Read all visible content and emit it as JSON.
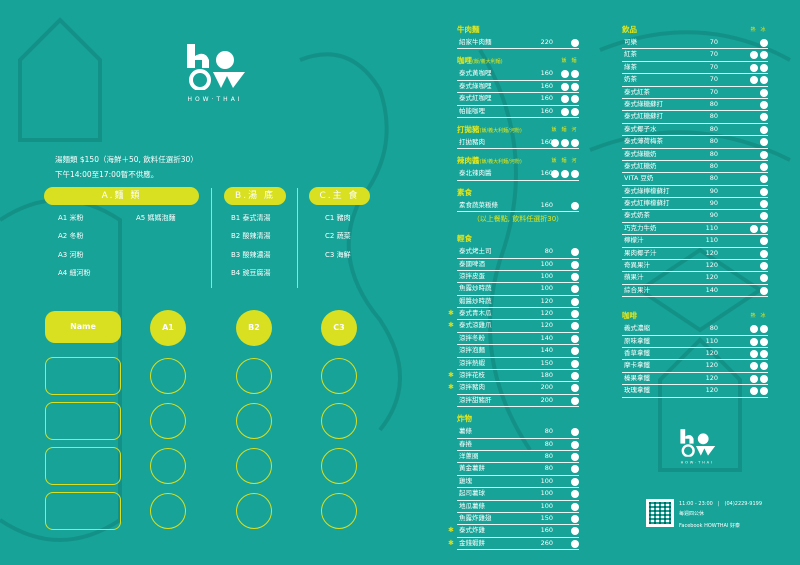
{
  "brand": {
    "logo_text": "ho",
    "logo_sub": "HOW·THAI"
  },
  "colors": {
    "background": "#17a398",
    "accent": "#d8e021"
  },
  "info": {
    "line1": "湯麵類 $150（海鮮＋50, 飲料任選折30）",
    "line2": "下午14:00至17:00暫不供應。"
  },
  "categories": [
    {
      "title": "A.麵 類",
      "options": [
        "A1 米粉",
        "A2 冬粉",
        "A3 河粉",
        "A4 細河粉",
        "A5 媽媽泡麵"
      ]
    },
    {
      "title": "B.湯 底",
      "options": [
        "B1 泰式清湯",
        "B2 酸辣清湯",
        "B3 酸辣濃湯",
        "B4 豌豆腐湯"
      ]
    },
    {
      "title": "C.主 食",
      "options": [
        "C1 豬肉",
        "C2 蔬菜",
        "C3 海鮮"
      ]
    }
  ],
  "order_form": {
    "name_label": "Name",
    "headers": [
      "A1",
      "B2",
      "C3"
    ]
  },
  "menu_left": [
    {
      "title": "牛肉麵",
      "sub": "",
      "labels": [],
      "items": [
        {
          "name": "紹家牛肉麵",
          "price": "220",
          "dots": 1
        }
      ]
    },
    {
      "title": "咖哩",
      "sub": "(飯/義大利麵)",
      "labels": [
        "飯",
        "麵"
      ],
      "items": [
        {
          "name": "泰式黃咖哩",
          "price": "160",
          "dots": 2
        },
        {
          "name": "泰式綠咖哩",
          "price": "160",
          "dots": 2
        },
        {
          "name": "泰式紅咖哩",
          "price": "160",
          "dots": 2
        },
        {
          "name": "帕能咖哩",
          "price": "160",
          "dots": 2
        }
      ]
    },
    {
      "title": "打拋豬",
      "sub": "(飯/義大利麵/河粉)",
      "labels": [
        "飯",
        "麵",
        "河"
      ],
      "items": [
        {
          "name": "打拋豬肉",
          "price": "160",
          "dots": 3
        }
      ]
    },
    {
      "title": "辣肉醬",
      "sub": "(飯/義大利麵/河粉)",
      "labels": [
        "飯",
        "麵",
        "河"
      ],
      "items": [
        {
          "name": "泰北辣肉醬",
          "price": "160",
          "dots": 3
        }
      ]
    },
    {
      "title": "素食",
      "sub": "",
      "labels": [],
      "items": [
        {
          "name": "素食蔬菜粄條",
          "price": "160",
          "dots": 1
        }
      ],
      "note": "（以上餐點, 飲料任選折30）"
    },
    {
      "title": "輕食",
      "sub": "",
      "labels": [],
      "items": [
        {
          "name": "泰式烤土司",
          "price": "80",
          "dots": 1
        },
        {
          "name": "泰國啤酒",
          "price": "100",
          "dots": 1
        },
        {
          "name": "涼拌皮蛋",
          "price": "100",
          "dots": 1
        },
        {
          "name": "魚露炒時蔬",
          "price": "100",
          "dots": 1
        },
        {
          "name": "蝦醬炒時蔬",
          "price": "120",
          "dots": 1
        },
        {
          "name": "泰式青木瓜",
          "price": "120",
          "dots": 1,
          "star": true
        },
        {
          "name": "泰式涼雞爪",
          "price": "120",
          "dots": 1,
          "star": true
        },
        {
          "name": "涼拌冬粉",
          "price": "140",
          "dots": 1
        },
        {
          "name": "涼拌泡麵",
          "price": "140",
          "dots": 1
        },
        {
          "name": "涼拌熱蝦",
          "price": "150",
          "dots": 1
        },
        {
          "name": "涼拌花枝",
          "price": "180",
          "dots": 1,
          "star": true
        },
        {
          "name": "涼拌豬肉",
          "price": "200",
          "dots": 1,
          "star": true
        },
        {
          "name": "涼拌甜豬肝",
          "price": "200",
          "dots": 1
        }
      ]
    },
    {
      "title": "炸物",
      "sub": "",
      "labels": [],
      "items": [
        {
          "name": "薯條",
          "price": "80",
          "dots": 1
        },
        {
          "name": "春捲",
          "price": "80",
          "dots": 1
        },
        {
          "name": "洋蔥圈",
          "price": "80",
          "dots": 1
        },
        {
          "name": "黃金薯餅",
          "price": "80",
          "dots": 1
        },
        {
          "name": "雞塊",
          "price": "100",
          "dots": 1
        },
        {
          "name": "起司薯球",
          "price": "100",
          "dots": 1
        },
        {
          "name": "地瓜薯條",
          "price": "100",
          "dots": 1
        },
        {
          "name": "魚露炸雞翅",
          "price": "150",
          "dots": 1
        },
        {
          "name": "泰式炸雞",
          "price": "160",
          "dots": 1,
          "star": true
        },
        {
          "name": "金錢蝦餅",
          "price": "260",
          "dots": 1,
          "star": true
        }
      ]
    }
  ],
  "menu_right": [
    {
      "title": "飲品",
      "sub": "",
      "labels": [
        "熱",
        "冰"
      ],
      "items": [
        {
          "name": "可樂",
          "price": "70",
          "dots": 1
        },
        {
          "name": "紅茶",
          "price": "70",
          "dots": 2
        },
        {
          "name": "綠茶",
          "price": "70",
          "dots": 2
        },
        {
          "name": "奶茶",
          "price": "70",
          "dots": 2
        },
        {
          "name": "泰式紅茶",
          "price": "70",
          "dots": 1
        },
        {
          "name": "泰式綠糖蘇打",
          "price": "80",
          "dots": 1
        },
        {
          "name": "泰式紅糖蘇打",
          "price": "80",
          "dots": 1
        },
        {
          "name": "泰式椰子水",
          "price": "80",
          "dots": 1
        },
        {
          "name": "泰式薄荷梅茶",
          "price": "80",
          "dots": 1
        },
        {
          "name": "泰式綠糖奶",
          "price": "80",
          "dots": 1
        },
        {
          "name": "泰式紅糖奶",
          "price": "80",
          "dots": 1
        },
        {
          "name": "VITA 豆奶",
          "price": "80",
          "dots": 1
        },
        {
          "name": "泰式綠檸檬蘇打",
          "price": "90",
          "dots": 1
        },
        {
          "name": "泰式紅檸檬蘇打",
          "price": "90",
          "dots": 1
        },
        {
          "name": "泰式奶茶",
          "price": "90",
          "dots": 1
        },
        {
          "name": "巧克力牛奶",
          "price": "110",
          "dots": 2
        },
        {
          "name": "檸檬汁",
          "price": "110",
          "dots": 1
        },
        {
          "name": "果肉椰子汁",
          "price": "120",
          "dots": 1
        },
        {
          "name": "奇異果汁",
          "price": "120",
          "dots": 1
        },
        {
          "name": "蘋果汁",
          "price": "120",
          "dots": 1
        },
        {
          "name": "綜合果汁",
          "price": "140",
          "dots": 1
        }
      ]
    },
    {
      "title": "咖啡",
      "sub": "",
      "labels": [
        "熱",
        "冰"
      ],
      "items": [
        {
          "name": "義式濃縮",
          "price": "80",
          "dots": 2
        },
        {
          "name": "原味拿鐵",
          "price": "110",
          "dots": 2
        },
        {
          "name": "香草拿鐵",
          "price": "120",
          "dots": 2
        },
        {
          "name": "摩卡拿鐵",
          "price": "120",
          "dots": 2
        },
        {
          "name": "榛果拿鐵",
          "price": "120",
          "dots": 2
        },
        {
          "name": "玫瑰拿鐵",
          "price": "120",
          "dots": 2
        }
      ]
    }
  ],
  "contact": {
    "hours": "11:00 - 23:00",
    "phone": "(04)2229-9199",
    "closed": "每週四公休",
    "facebook": "Facebook HOWTHAI 好泰"
  }
}
